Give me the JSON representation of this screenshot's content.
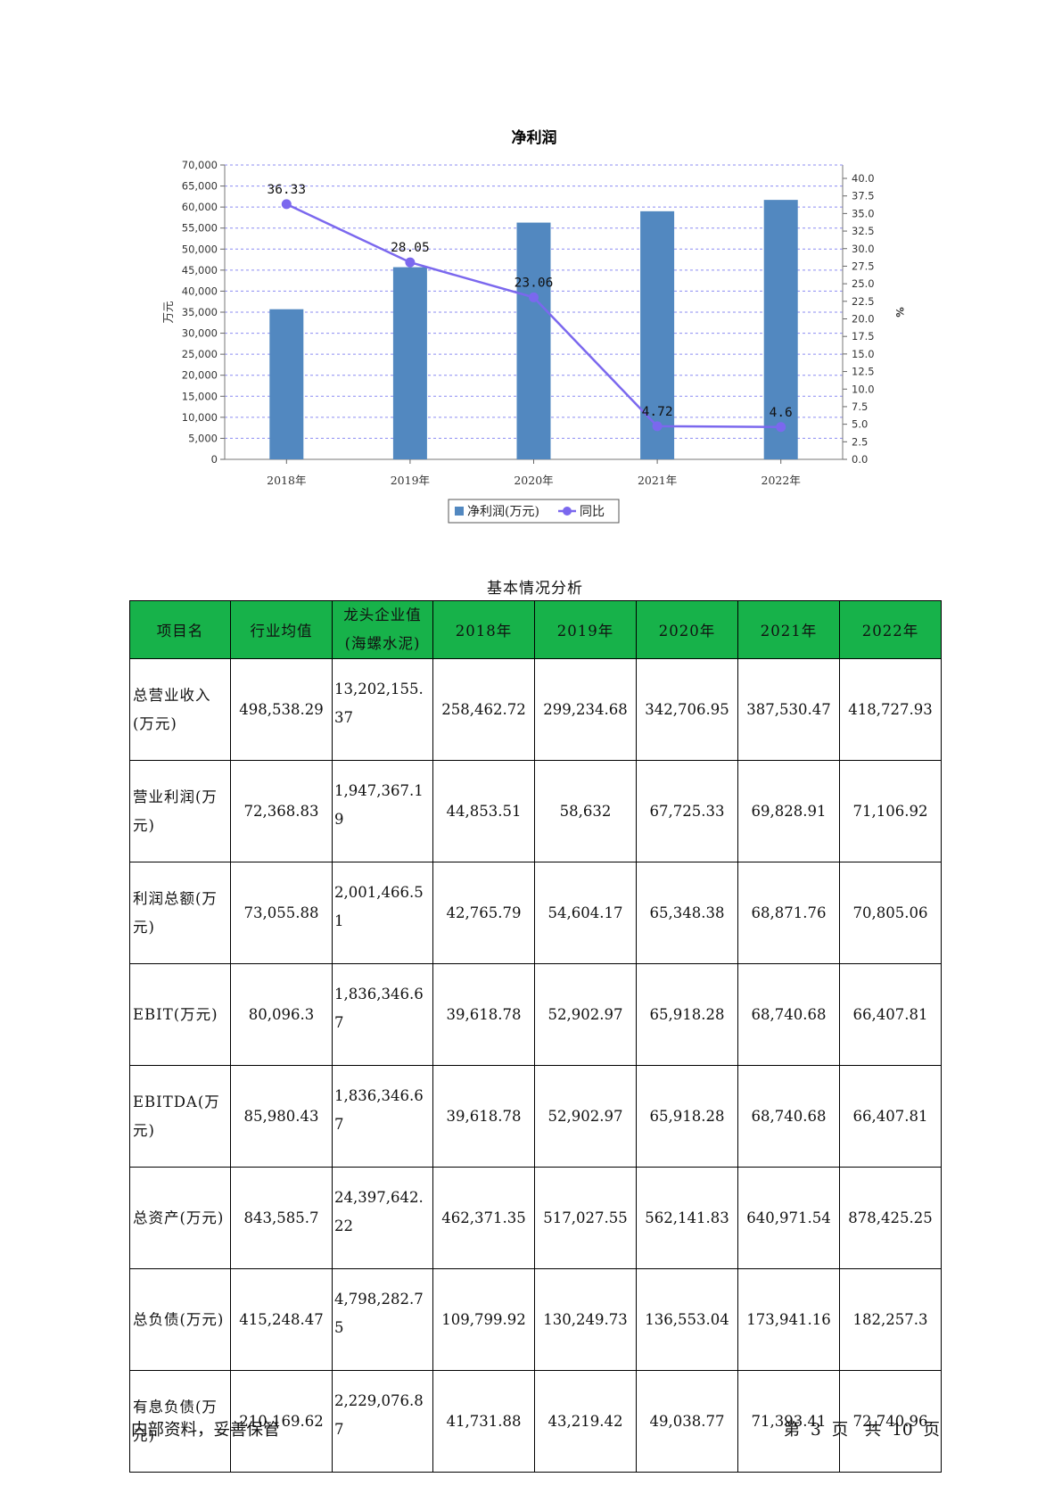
{
  "chart_data": {
    "type": "bar+line",
    "title": "净利润",
    "categories": [
      "2018年",
      "2019年",
      "2020年",
      "2021年",
      "2022年"
    ],
    "ylabel_left": "万元",
    "ylabel_right": "%",
    "ylim_left": [
      0,
      70000
    ],
    "yticks_left": [
      "0",
      "5,000",
      "10,000",
      "15,000",
      "20,000",
      "25,000",
      "30,000",
      "35,000",
      "40,000",
      "45,000",
      "50,000",
      "55,000",
      "60,000",
      "65,000",
      "70,000"
    ],
    "ylim_right": [
      0,
      40
    ],
    "yticks_right": [
      "0.0",
      "2.5",
      "5.0",
      "7.5",
      "10.0",
      "12.5",
      "15.0",
      "17.5",
      "20.0",
      "22.5",
      "25.0",
      "27.5",
      "30.0",
      "32.5",
      "35.0",
      "37.5",
      "40.0"
    ],
    "grid": true,
    "legend_position": "bottom",
    "series": [
      {
        "name": "净利润(万元)",
        "type": "bar",
        "axis": "left",
        "color": "#5288c0",
        "values": [
          35700,
          45700,
          56300,
          59000,
          61700
        ]
      },
      {
        "name": "同比",
        "type": "line",
        "axis": "right",
        "color": "#7b68ee",
        "values": [
          36.33,
          28.05,
          23.06,
          4.72,
          4.6
        ],
        "labels": [
          "36.33",
          "28.05",
          "23.06",
          "4.72",
          "4.6"
        ]
      }
    ]
  },
  "table": {
    "caption": "基本情况分析",
    "headers": [
      "项目名",
      "行业均值",
      "龙头企业值(海螺水泥)",
      "2018年",
      "2019年",
      "2020年",
      "2021年",
      "2022年"
    ],
    "rows": [
      [
        "总营业收入(万元)",
        "498,538.29",
        "13,202,155.37",
        "258,462.72",
        "299,234.68",
        "342,706.95",
        "387,530.47",
        "418,727.93"
      ],
      [
        "营业利润(万元)",
        "72,368.83",
        "1,947,367.19",
        "44,853.51",
        "58,632",
        "67,725.33",
        "69,828.91",
        "71,106.92"
      ],
      [
        "利润总额(万元)",
        "73,055.88",
        "2,001,466.51",
        "42,765.79",
        "54,604.17",
        "65,348.38",
        "68,871.76",
        "70,805.06"
      ],
      [
        "EBIT(万元)",
        "80,096.3",
        "1,836,346.67",
        "39,618.78",
        "52,902.97",
        "65,918.28",
        "68,740.68",
        "66,407.81"
      ],
      [
        "EBITDA(万元)",
        "85,980.43",
        "1,836,346.67",
        "39,618.78",
        "52,902.97",
        "65,918.28",
        "68,740.68",
        "66,407.81"
      ],
      [
        "总资产(万元)",
        "843,585.7",
        "24,397,642.22",
        "462,371.35",
        "517,027.55",
        "562,141.83",
        "640,971.54",
        "878,425.25"
      ],
      [
        "总负债(万元)",
        "415,248.47",
        "4,798,282.75",
        "109,799.92",
        "130,249.73",
        "136,553.04",
        "173,941.16",
        "182,257.3"
      ],
      [
        "有息负债(万元)",
        "210,169.62",
        "2,229,076.87",
        "41,731.88",
        "43,219.42",
        "49,038.77",
        "71,393.41",
        "72,740.96"
      ]
    ]
  },
  "footer": {
    "left": "内部资料，妥善保管",
    "right": "第 3 页　共 10 页"
  }
}
